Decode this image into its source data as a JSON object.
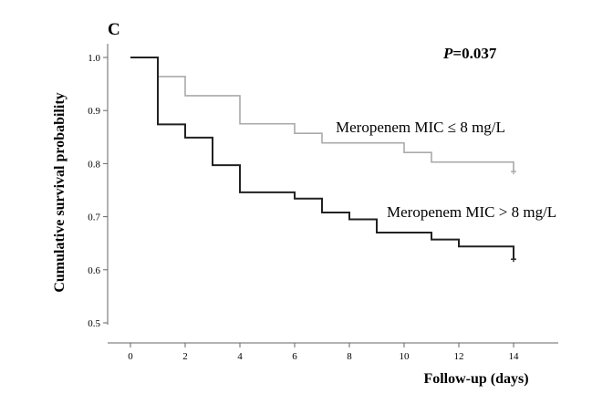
{
  "panel_label": "C",
  "p_value": {
    "prefix": "P",
    "text": "=0.037"
  },
  "chart_data": {
    "type": "line",
    "subtype": "kaplan-meier step",
    "xlabel": "Follow-up (days)",
    "ylabel": "Cumulative survival probability",
    "xlim": [
      -1,
      16
    ],
    "ylim": [
      0.5,
      1.0
    ],
    "xticks": [
      0,
      2,
      4,
      6,
      8,
      10,
      12,
      14
    ],
    "yticks": [
      0.5,
      0.6,
      0.7,
      0.8,
      0.9,
      1.0
    ],
    "grid": false,
    "series": [
      {
        "name": "Meropenem MIC ≤ 8 mg/L",
        "color": "#aaaaaa",
        "censor_at_end": true,
        "points": [
          [
            0,
            1.0
          ],
          [
            1,
            0.964
          ],
          [
            2,
            0.928
          ],
          [
            4,
            0.875
          ],
          [
            6,
            0.857
          ],
          [
            7,
            0.839
          ],
          [
            10,
            0.821
          ],
          [
            11,
            0.803
          ],
          [
            14,
            0.785
          ]
        ]
      },
      {
        "name": "Meropenem MIC > 8 mg/L",
        "color": "#222222",
        "censor_at_end": true,
        "points": [
          [
            0,
            1.0
          ],
          [
            1,
            0.874
          ],
          [
            2,
            0.849
          ],
          [
            3,
            0.797
          ],
          [
            4,
            0.746
          ],
          [
            6,
            0.734
          ],
          [
            7,
            0.708
          ],
          [
            8,
            0.695
          ],
          [
            9,
            0.67
          ],
          [
            11,
            0.657
          ],
          [
            12,
            0.644
          ],
          [
            14,
            0.62
          ]
        ]
      }
    ]
  }
}
